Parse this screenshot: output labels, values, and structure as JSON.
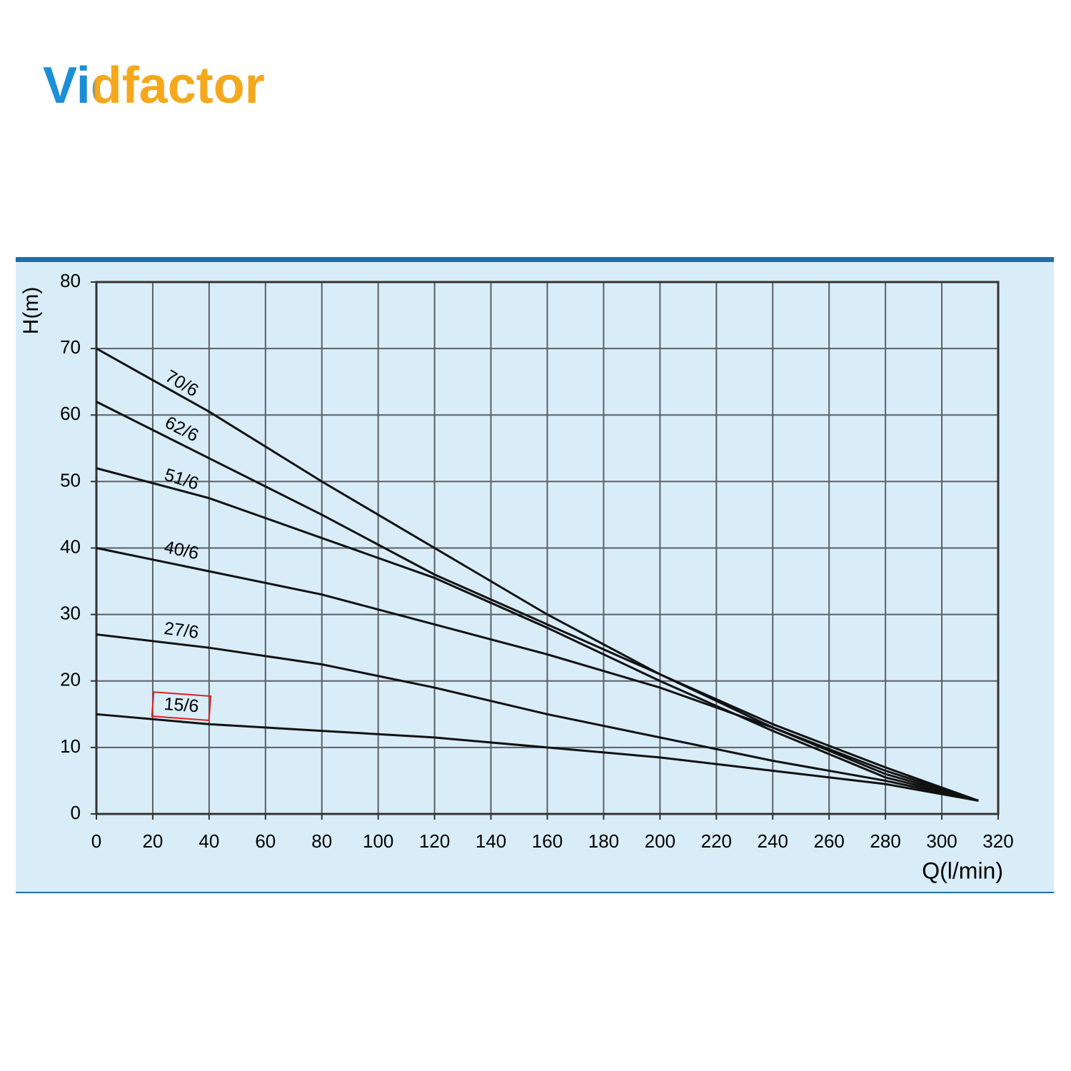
{
  "logo": "Vidfactor",
  "chart_data": {
    "type": "line",
    "y_label": "H(m)",
    "x_label": "Q(l/min)",
    "x": [
      0,
      40,
      80,
      120,
      160,
      200,
      240,
      280,
      313
    ],
    "series": [
      {
        "name": "70/6",
        "color": "#111111",
        "values": [
          70,
          60.5,
          50,
          40,
          30,
          21,
          13,
          6,
          2
        ]
      },
      {
        "name": "62/6",
        "color": "#111111",
        "values": [
          62,
          53.5,
          45,
          36,
          28.5,
          21,
          13.5,
          7,
          2
        ]
      },
      {
        "name": "51/6",
        "color": "#111111",
        "values": [
          52,
          47.5,
          41.5,
          35.5,
          28,
          20,
          12.5,
          5.5,
          2
        ]
      },
      {
        "name": "40/6",
        "color": "#111111",
        "values": [
          40,
          36.5,
          33,
          28.5,
          24,
          19,
          13,
          6.5,
          2
        ]
      },
      {
        "name": "27/6",
        "color": "#111111",
        "values": [
          27,
          25,
          22.5,
          19,
          15,
          11.5,
          8,
          5,
          2
        ]
      },
      {
        "name": "15/6",
        "color": "#111111",
        "boxed": true,
        "values": [
          15,
          13.5,
          12.5,
          11.5,
          10,
          8.5,
          6.5,
          4.5,
          2
        ]
      }
    ],
    "xlim": [
      0,
      320
    ],
    "xticks": [
      0,
      20,
      40,
      60,
      80,
      100,
      120,
      140,
      160,
      180,
      200,
      220,
      240,
      260,
      280,
      300,
      320
    ],
    "ylim": [
      0,
      80
    ],
    "yticks": [
      0,
      10,
      20,
      30,
      40,
      50,
      60,
      70,
      80
    ],
    "grid": true
  }
}
